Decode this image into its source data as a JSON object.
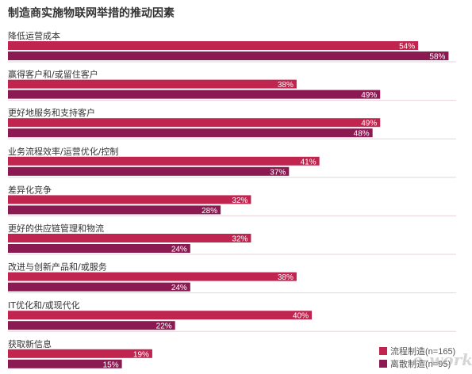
{
  "title": "制造商实施物联网举措的推动因素",
  "colors": {
    "series_process": "#c0254f",
    "series_discrete": "#8c1a52",
    "category_text": "#333333",
    "value_text": "#ffffff",
    "divider": "#e6d3dc"
  },
  "chart_data": {
    "type": "bar",
    "orientation": "horizontal",
    "title": "制造商实施物联网举措的推动因素",
    "xlabel": "",
    "ylabel": "",
    "value_unit": "%",
    "xlim": [
      0,
      59
    ],
    "grid": false,
    "legend_position": "bottom-right",
    "categories": [
      "降低运营成本",
      "赢得客户和/或留住客户",
      "更好地服务和支持客户",
      "业务流程效率/运营优化/控制",
      "差异化竞争",
      "更好的供应链管理和物流",
      "改进与创新产品和/或服务",
      "IT优化和/或现代化",
      "获取新信息"
    ],
    "series": [
      {
        "name": "流程制造(n=165)",
        "values": [
          54,
          38,
          49,
          41,
          32,
          32,
          38,
          40,
          19
        ]
      },
      {
        "name": "离散制造(n=95)",
        "values": [
          58,
          49,
          48,
          37,
          28,
          24,
          24,
          22,
          15
        ]
      }
    ]
  }
}
